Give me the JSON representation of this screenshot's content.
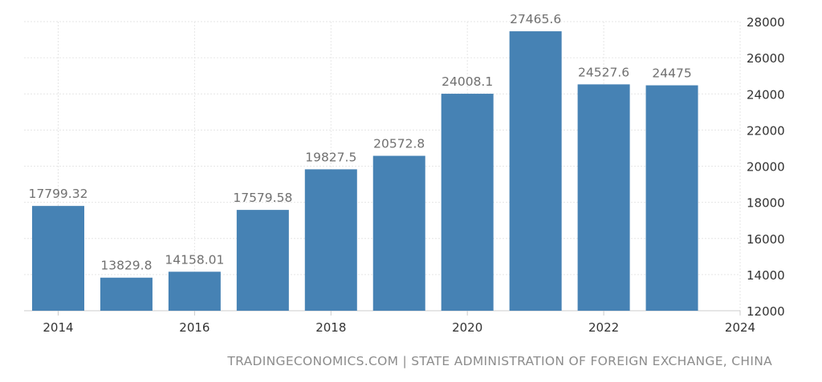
{
  "chart_data": {
    "type": "bar",
    "title": "",
    "xlabel": "",
    "ylabel": "",
    "categories": [
      "2014",
      "2015",
      "2016",
      "2017",
      "2018",
      "2019",
      "2020",
      "2021",
      "2022",
      "2023"
    ],
    "values": [
      17799.32,
      13829.8,
      14158.01,
      17579.58,
      19827.5,
      20572.8,
      24008.1,
      27465.6,
      24527.6,
      24475
    ],
    "data_labels": [
      "17799.32",
      "13829.8",
      "14158.01",
      "17579.58",
      "19827.5",
      "20572.8",
      "24008.1",
      "27465.6",
      "24527.6",
      "24475"
    ],
    "x_ticks": [
      "2014",
      "2016",
      "2018",
      "2020",
      "2022",
      "2024"
    ],
    "x_tick_values": [
      2014,
      2016,
      2018,
      2020,
      2022,
      2024
    ],
    "x_range": [
      2013.5,
      2024
    ],
    "y_ticks": [
      "12000",
      "14000",
      "16000",
      "18000",
      "20000",
      "22000",
      "24000",
      "26000",
      "28000"
    ],
    "y_tick_values": [
      12000,
      14000,
      16000,
      18000,
      20000,
      22000,
      24000,
      26000,
      28000
    ],
    "ylim": [
      12000,
      28000
    ],
    "y_axis_side": "right",
    "grid": true,
    "bar_color": "#4682b4"
  },
  "source": "TRADINGECONOMICS.COM | STATE ADMINISTRATION OF FOREIGN EXCHANGE, CHINA"
}
